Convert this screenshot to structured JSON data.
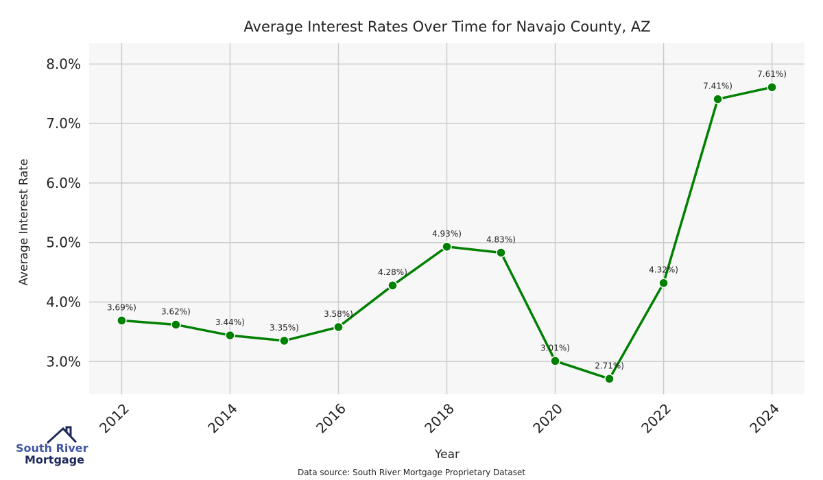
{
  "chart_data": {
    "type": "line",
    "title": "Average Interest Rates Over Time for Navajo County, AZ",
    "xlabel": "Year",
    "ylabel": "Average Interest Rate",
    "x": [
      2012,
      2013,
      2014,
      2015,
      2016,
      2017,
      2018,
      2019,
      2020,
      2021,
      2022,
      2023,
      2024
    ],
    "values": [
      3.69,
      3.62,
      3.44,
      3.35,
      3.58,
      4.28,
      4.93,
      4.83,
      3.01,
      2.71,
      4.32,
      7.41,
      7.61
    ],
    "data_labels": [
      "3.69%)",
      "3.62%)",
      "3.44%)",
      "3.35%)",
      "3.58%)",
      "4.28%)",
      "4.93%)",
      "4.83%)",
      "3.01%)",
      "2.71%)",
      "4.32%)",
      "7.41%)",
      "7.61%)"
    ],
    "x_ticks": [
      "2012",
      "2014",
      "2016",
      "2018",
      "2020",
      "2022",
      "2024"
    ],
    "y_ticks": [
      "3.0%",
      "4.0%",
      "5.0%",
      "6.0%",
      "7.0%",
      "8.0%"
    ],
    "xlim": [
      2011.4,
      2024.6
    ],
    "ylim": [
      2.45,
      8.35
    ],
    "grid": true,
    "line_color": "#008000",
    "plot_background": "#f7f7f7",
    "grid_color": "#cccccc"
  },
  "footer": {
    "source": "Data source: South River Mortgage Proprietary Dataset"
  },
  "logo": {
    "line1": "South River",
    "line2": "Mortgage"
  }
}
